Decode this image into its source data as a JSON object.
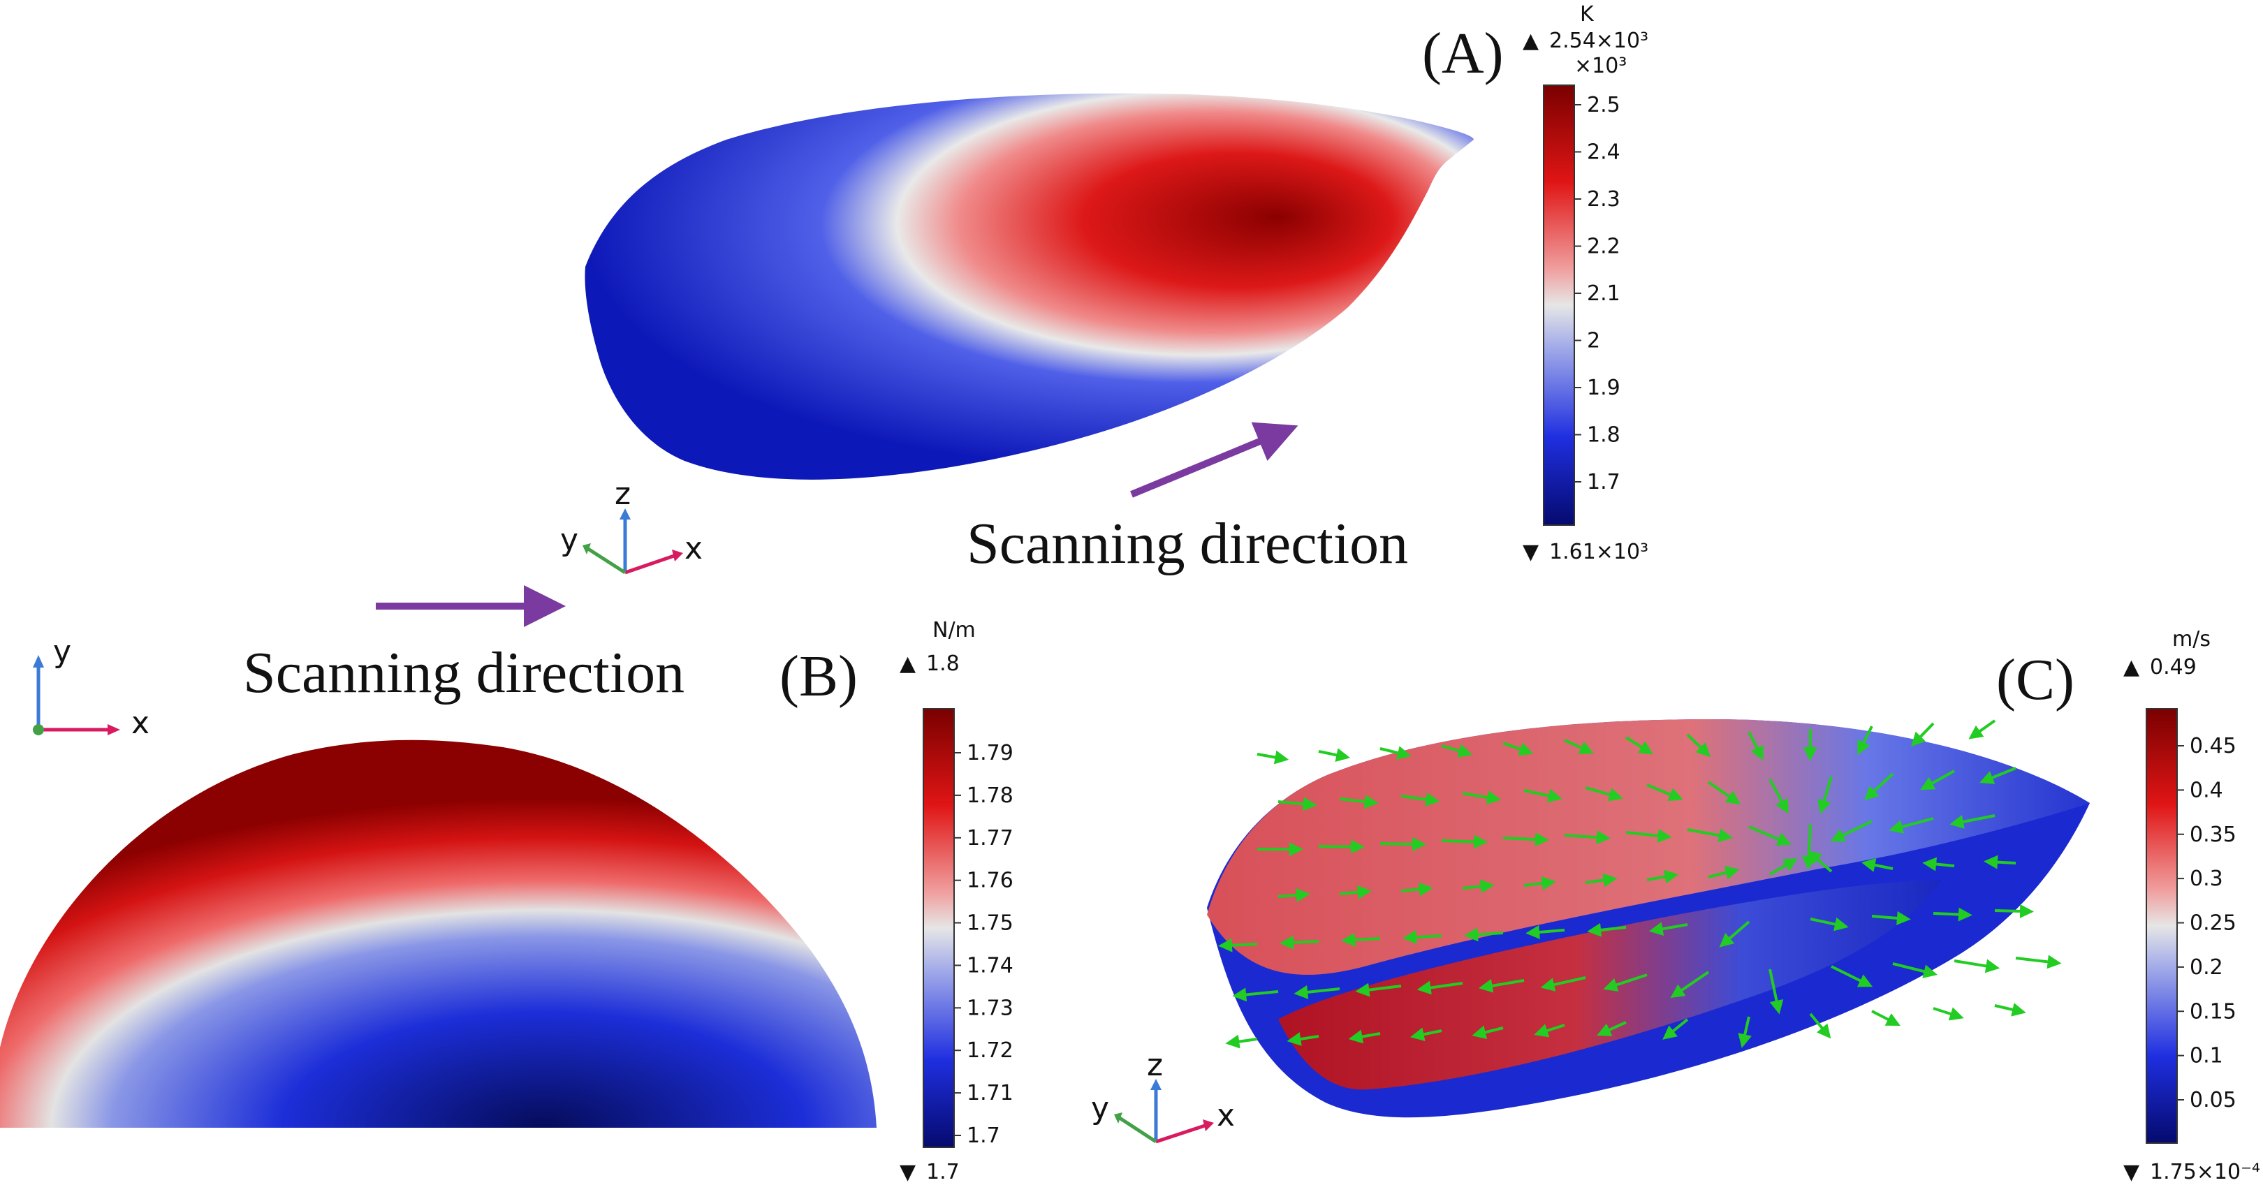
{
  "panels": {
    "A": {
      "label": "(A)",
      "scan_text": "Scanning direction",
      "axes": {
        "z": "z",
        "y": "y",
        "x": "x"
      },
      "colorbar": {
        "unit": "K",
        "max_label": "2.54×10³",
        "multiplier": "×10³",
        "min_label": "1.61×10³",
        "ticks": [
          "2.5",
          "2.4",
          "2.3",
          "2.2",
          "2.1",
          "2",
          "1.9",
          "1.8",
          "1.7"
        ]
      }
    },
    "B": {
      "label": "(B)",
      "scan_text": "Scanning direction",
      "axes": {
        "y": "y",
        "x": "x"
      },
      "colorbar": {
        "unit": "N/m",
        "max_label": "1.8",
        "min_label": "1.7",
        "ticks": [
          "1.79",
          "1.78",
          "1.77",
          "1.76",
          "1.75",
          "1.74",
          "1.73",
          "1.72",
          "1.71",
          "1.7"
        ]
      }
    },
    "C": {
      "label": "(C)",
      "axes": {
        "z": "z",
        "y": "y",
        "x": "x"
      },
      "colorbar": {
        "unit": "m/s",
        "max_label": "0.49",
        "min_label": "1.75×10⁻⁴",
        "ticks": [
          "0.45",
          "0.4",
          "0.35",
          "0.3",
          "0.25",
          "0.2",
          "0.15",
          "0.1",
          "0.05"
        ]
      }
    }
  },
  "colors": {
    "high": "#8b0000",
    "mid": "#e8e8e8",
    "low": "#0a1a8c",
    "arrow_purple": "#7a3aa0",
    "vector_green": "#22cc22",
    "axis_x": "#d81b60",
    "axis_y": "#43a047",
    "axis_z": "#3a7bd5"
  }
}
